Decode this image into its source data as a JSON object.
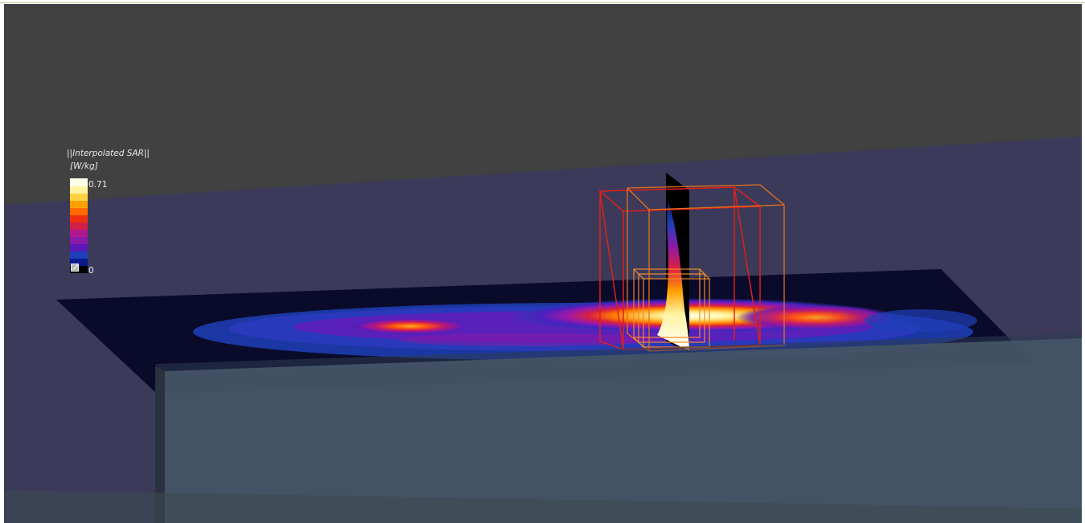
{
  "legend": {
    "title": "||Interpolated SAR||",
    "unit": "[W/kg]",
    "max_label": "0.71",
    "min_label": "0",
    "colors": [
      "#000000",
      "#0a1a8a",
      "#1f3fb8",
      "#5a18b8",
      "#8c1aa8",
      "#b01890",
      "#d0204a",
      "#ee3010",
      "#ff6a00",
      "#ffa000",
      "#ffd040",
      "#fff3a0",
      "#ffffe8"
    ]
  },
  "scene": {
    "background_top": "#414141",
    "haze_color": "#3b3a5a",
    "plane_color": "#0a0a2a",
    "block_color": "#445466"
  }
}
